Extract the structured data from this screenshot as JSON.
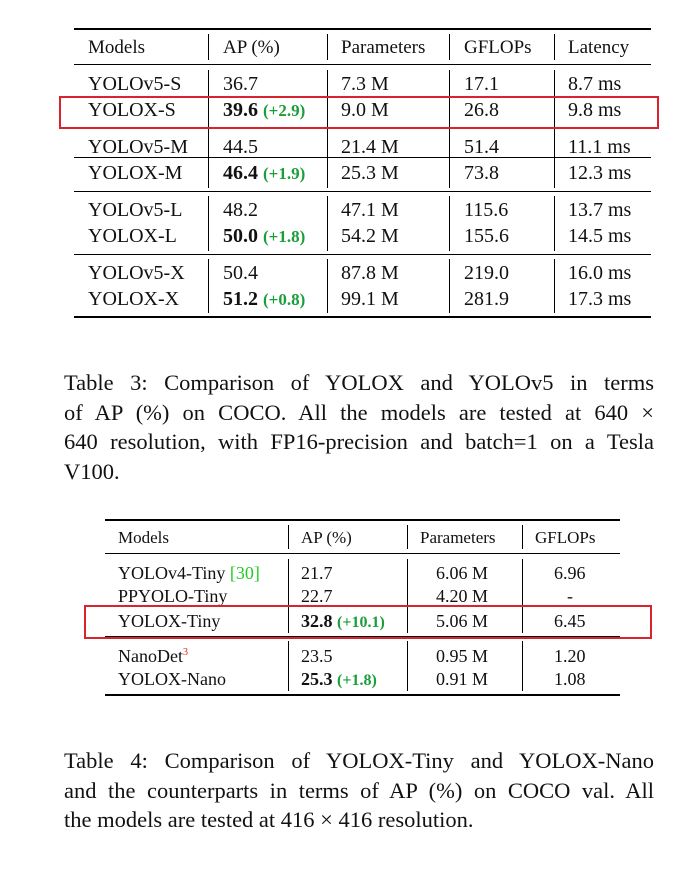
{
  "table3": {
    "headers": [
      "Models",
      "AP (%)",
      "Parameters",
      "GFLOPs",
      "Latency"
    ],
    "groups": [
      [
        {
          "model": "YOLOv5-S",
          "ap": "36.7",
          "gain": "",
          "params": "7.3 M",
          "gflops": "17.1",
          "latency": "8.7 ms"
        },
        {
          "model": "YOLOX-S",
          "ap": "39.6",
          "gain": "(+2.9)",
          "params": "9.0 M",
          "gflops": "26.8",
          "latency": "9.8 ms"
        }
      ],
      [
        {
          "model": "YOLOv5-M",
          "ap": "44.5",
          "gain": "",
          "params": "21.4 M",
          "gflops": "51.4",
          "latency": "11.1 ms"
        },
        {
          "model": "YOLOX-M",
          "ap": "46.4",
          "gain": "(+1.9)",
          "params": "25.3 M",
          "gflops": "73.8",
          "latency": "12.3 ms"
        }
      ],
      [
        {
          "model": "YOLOv5-L",
          "ap": "48.2",
          "gain": "",
          "params": "47.1 M",
          "gflops": "115.6",
          "latency": "13.7 ms"
        },
        {
          "model": "YOLOX-L",
          "ap": "50.0",
          "gain": "(+1.8)",
          "params": "54.2 M",
          "gflops": "155.6",
          "latency": "14.5 ms"
        }
      ],
      [
        {
          "model": "YOLOv5-X",
          "ap": "50.4",
          "gain": "",
          "params": "87.8 M",
          "gflops": "219.0",
          "latency": "16.0 ms"
        },
        {
          "model": "YOLOX-X",
          "ap": "51.2",
          "gain": "(+0.8)",
          "params": "99.1 M",
          "gflops": "281.9",
          "latency": "17.3 ms"
        }
      ]
    ],
    "caption_lines": [
      "Table 3: Comparison of YOLOX and YOLOv5 in terms",
      "of AP (%) on COCO. All the models are tested at 640 ×",
      "640 resolution, with FP16-precision and batch=1 on a Tesla",
      "V100."
    ]
  },
  "table4": {
    "headers": [
      "Models",
      "AP (%)",
      "Parameters",
      "GFLOPs"
    ],
    "groups": [
      [
        {
          "model": "YOLOv4-Tiny",
          "cite": "[30]",
          "sup": "",
          "ap": "21.7",
          "gain": "",
          "params": "6.06 M",
          "gflops": "6.96"
        },
        {
          "model": "PPYOLO-Tiny",
          "cite": "",
          "sup": "",
          "ap": "22.7",
          "gain": "",
          "params": "4.20 M",
          "gflops": "-"
        },
        {
          "model": "YOLOX-Tiny",
          "cite": "",
          "sup": "",
          "ap": "32.8",
          "gain": "(+10.1)",
          "params": "5.06 M",
          "gflops": "6.45"
        }
      ],
      [
        {
          "model": "NanoDet",
          "cite": "",
          "sup": "3",
          "ap": "23.5",
          "gain": "",
          "params": "0.95 M",
          "gflops": "1.20"
        },
        {
          "model": "YOLOX-Nano",
          "cite": "",
          "sup": "",
          "ap": "25.3",
          "gain": "(+1.8)",
          "params": "0.91 M",
          "gflops": "1.08"
        }
      ]
    ],
    "caption_lines": [
      "Table 4: Comparison of YOLOX-Tiny and YOLOX-Nano",
      "and the counterparts in terms of AP (%) on COCO val. All",
      "the models are tested at 416 × 416 resolution."
    ]
  },
  "colors": {
    "highlight": "#d9232e",
    "gain": "#1a9e3a",
    "cite": "#22cc22",
    "footnote": "#e0201a"
  }
}
